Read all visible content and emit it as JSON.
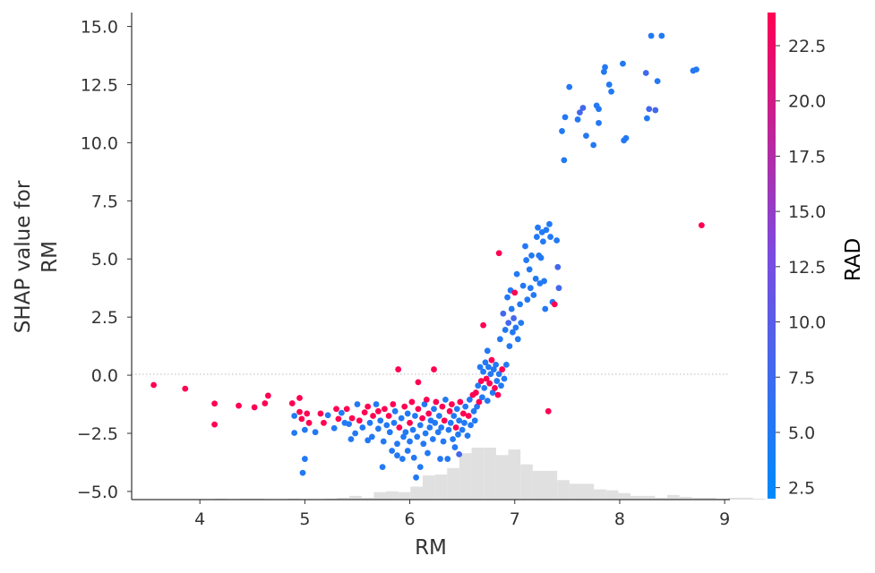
{
  "chart_data": {
    "type": "scatter",
    "title": "",
    "xlabel": "RM",
    "ylabel_lines": [
      "SHAP value for",
      "RM"
    ],
    "xlim": [
      3.35,
      9.05
    ],
    "ylim": [
      -5.35,
      15.6
    ],
    "xticks": [
      4,
      5,
      6,
      7,
      8,
      9
    ],
    "xtick_labels": [
      "4",
      "5",
      "6",
      "7",
      "8",
      "9"
    ],
    "yticks": [
      15.0,
      12.5,
      10.0,
      7.5,
      5.0,
      2.5,
      0.0,
      -2.5,
      -5.0
    ],
    "ytick_labels": [
      "15.0",
      "12.5",
      "10.0",
      "7.5",
      "5.0",
      "2.5",
      "0.0",
      "−2.5",
      "−5.0"
    ],
    "zero_line": true,
    "colorbar": {
      "label": "RAD",
      "range": [
        2,
        24
      ],
      "ticks": [
        22.5,
        20.0,
        17.5,
        15.0,
        12.5,
        10.0,
        7.5,
        5.0,
        2.5
      ],
      "tick_labels": [
        "22.5",
        "20.0",
        "17.5",
        "15.0",
        "12.5",
        "10.0",
        "7.5",
        "5.0",
        "2.5"
      ],
      "colors": [
        "#008afb",
        "#7b4be0",
        "#ff0052"
      ]
    },
    "histogram": {
      "bin_start": 3.56,
      "bin_width": 0.1165,
      "counts": [
        0,
        0,
        0,
        0,
        0,
        1,
        0,
        1,
        1,
        0,
        0,
        1,
        0,
        0,
        1,
        2,
        4,
        2,
        8,
        9,
        8,
        14,
        26,
        27,
        34,
        50,
        56,
        56,
        48,
        54,
        38,
        31,
        31,
        21,
        17,
        17,
        11,
        10,
        7,
        4,
        4,
        2,
        5,
        3,
        2,
        2,
        1,
        2,
        2,
        1
      ]
    },
    "points": [
      [
        3.56,
        -0.42,
        24
      ],
      [
        3.86,
        -0.58,
        24
      ],
      [
        4.14,
        -1.22,
        24
      ],
      [
        4.14,
        -2.12,
        24
      ],
      [
        4.37,
        -1.31,
        24
      ],
      [
        4.52,
        -1.38,
        24
      ],
      [
        4.62,
        -1.21,
        24
      ],
      [
        4.65,
        -0.88,
        24
      ],
      [
        4.88,
        -1.21,
        24
      ],
      [
        4.9,
        -1.75,
        5
      ],
      [
        4.9,
        -2.48,
        5
      ],
      [
        4.95,
        -1.58,
        24
      ],
      [
        4.95,
        -0.98,
        24
      ],
      [
        4.97,
        -1.88,
        24
      ],
      [
        4.98,
        -4.2,
        5
      ],
      [
        5.0,
        -3.6,
        5
      ],
      [
        5.0,
        -2.35,
        5
      ],
      [
        5.02,
        -1.65,
        24
      ],
      [
        5.04,
        -2.05,
        24
      ],
      [
        5.1,
        -2.45,
        5
      ],
      [
        5.15,
        -1.65,
        24
      ],
      [
        5.18,
        -2.05,
        24
      ],
      [
        5.22,
        -1.72,
        5
      ],
      [
        5.28,
        -2.28,
        5
      ],
      [
        5.3,
        -1.45,
        24
      ],
      [
        5.32,
        -1.88,
        24
      ],
      [
        5.35,
        -1.62,
        5
      ],
      [
        5.38,
        -2.05,
        5
      ],
      [
        5.4,
        -1.45,
        24
      ],
      [
        5.42,
        -2.1,
        5
      ],
      [
        5.44,
        -2.75,
        5
      ],
      [
        5.45,
        -1.85,
        24
      ],
      [
        5.48,
        -2.5,
        5
      ],
      [
        5.5,
        -1.25,
        5
      ],
      [
        5.52,
        -1.95,
        24
      ],
      [
        5.55,
        -2.25,
        5
      ],
      [
        5.57,
        -1.6,
        24
      ],
      [
        5.6,
        -2.8,
        5
      ],
      [
        5.6,
        -1.35,
        24
      ],
      [
        5.62,
        -2.05,
        5
      ],
      [
        5.64,
        -2.65,
        5
      ],
      [
        5.65,
        -1.75,
        24
      ],
      [
        5.68,
        -1.25,
        5
      ],
      [
        5.7,
        -1.55,
        24
      ],
      [
        5.7,
        -2.3,
        5
      ],
      [
        5.72,
        -1.95,
        5
      ],
      [
        5.74,
        -3.95,
        5
      ],
      [
        5.75,
        -2.85,
        5
      ],
      [
        5.76,
        -1.45,
        24
      ],
      [
        5.78,
        -2.15,
        5
      ],
      [
        5.8,
        -1.75,
        24
      ],
      [
        5.81,
        -2.45,
        5
      ],
      [
        5.83,
        -3.25,
        5
      ],
      [
        5.84,
        -1.25,
        24
      ],
      [
        5.85,
        -2.05,
        5
      ],
      [
        5.86,
        -1.55,
        5
      ],
      [
        5.88,
        -3.45,
        5
      ],
      [
        5.88,
        -2.95,
        5
      ],
      [
        5.89,
        0.25,
        24
      ],
      [
        5.9,
        -2.25,
        24
      ],
      [
        5.92,
        -1.85,
        5
      ],
      [
        5.93,
        -3.6,
        5
      ],
      [
        5.94,
        -2.65,
        5
      ],
      [
        5.95,
        -1.35,
        24
      ],
      [
        5.96,
        -2.45,
        5
      ],
      [
        5.98,
        -1.65,
        5
      ],
      [
        5.98,
        -3.25,
        5
      ],
      [
        6.0,
        -2.05,
        24
      ],
      [
        6.0,
        -2.85,
        5
      ],
      [
        6.02,
        -1.15,
        24
      ],
      [
        6.03,
        -2.35,
        5
      ],
      [
        6.04,
        -3.55,
        5
      ],
      [
        6.05,
        -1.75,
        5
      ],
      [
        6.06,
        -4.4,
        5
      ],
      [
        6.07,
        -2.65,
        5
      ],
      [
        6.08,
        -0.3,
        24
      ],
      [
        6.08,
        -1.45,
        24
      ],
      [
        6.1,
        -2.15,
        5
      ],
      [
        6.1,
        -3.95,
        5
      ],
      [
        6.12,
        -1.85,
        24
      ],
      [
        6.13,
        -2.95,
        5
      ],
      [
        6.14,
        -1.25,
        5
      ],
      [
        6.15,
        -2.5,
        5
      ],
      [
        6.16,
        -1.05,
        24
      ],
      [
        6.17,
        -3.35,
        5
      ],
      [
        6.18,
        -1.65,
        24
      ],
      [
        6.19,
        -2.25,
        5
      ],
      [
        6.2,
        -1.95,
        5
      ],
      [
        6.22,
        -2.75,
        5
      ],
      [
        6.23,
        0.25,
        24
      ],
      [
        6.23,
        -1.45,
        5
      ],
      [
        6.24,
        -2.05,
        5
      ],
      [
        6.25,
        -1.15,
        24
      ],
      [
        6.27,
        -2.45,
        5
      ],
      [
        6.28,
        -1.75,
        5
      ],
      [
        6.29,
        -3.6,
        5
      ],
      [
        6.3,
        -2.25,
        5
      ],
      [
        6.31,
        -1.35,
        24
      ],
      [
        6.32,
        -2.85,
        5
      ],
      [
        6.33,
        -1.95,
        24
      ],
      [
        6.34,
        -1.05,
        5
      ],
      [
        6.36,
        -3.6,
        5
      ],
      [
        6.37,
        -2.35,
        5
      ],
      [
        6.38,
        -1.55,
        24
      ],
      [
        6.39,
        -2.05,
        5
      ],
      [
        6.4,
        -1.25,
        24
      ],
      [
        6.41,
        -2.75,
        5
      ],
      [
        6.42,
        -1.75,
        5
      ],
      [
        6.43,
        -3.1,
        5
      ],
      [
        6.44,
        -2.25,
        24
      ],
      [
        6.45,
        -1.45,
        5
      ],
      [
        6.46,
        -2.55,
        5
      ],
      [
        6.47,
        -3.4,
        8
      ],
      [
        6.47,
        -1.95,
        5
      ],
      [
        6.48,
        -1.15,
        24
      ],
      [
        6.5,
        -2.35,
        5
      ],
      [
        6.51,
        -1.65,
        24
      ],
      [
        6.52,
        -2.05,
        5
      ],
      [
        6.53,
        -1.35,
        5
      ],
      [
        6.55,
        -2.6,
        5
      ],
      [
        6.56,
        -1.75,
        24
      ],
      [
        6.57,
        -1.05,
        5
      ],
      [
        6.58,
        -2.15,
        5
      ],
      [
        6.6,
        -0.85,
        24
      ],
      [
        6.61,
        -1.55,
        5
      ],
      [
        6.62,
        -1.95,
        5
      ],
      [
        6.63,
        -0.75,
        24
      ],
      [
        6.64,
        -1.35,
        5
      ],
      [
        6.65,
        -0.45,
        5
      ],
      [
        6.66,
        -1.15,
        24
      ],
      [
        6.67,
        0.35,
        5
      ],
      [
        6.68,
        -0.25,
        24
      ],
      [
        6.69,
        -0.95,
        5
      ],
      [
        6.7,
        0.15,
        5
      ],
      [
        6.7,
        2.15,
        24
      ],
      [
        6.71,
        -0.55,
        5
      ],
      [
        6.72,
        0.55,
        5
      ],
      [
        6.73,
        -0.15,
        24
      ],
      [
        6.74,
        1.05,
        5
      ],
      [
        6.74,
        -1.1,
        5
      ],
      [
        6.75,
        0.35,
        5
      ],
      [
        6.76,
        -0.35,
        24
      ],
      [
        6.77,
        0.05,
        5
      ],
      [
        6.78,
        0.65,
        24
      ],
      [
        6.79,
        -0.75,
        5
      ],
      [
        6.8,
        0.25,
        5
      ],
      [
        6.81,
        -0.55,
        24
      ],
      [
        6.82,
        0.45,
        5
      ],
      [
        6.83,
        -0.25,
        5
      ],
      [
        6.84,
        -0.85,
        24
      ],
      [
        6.85,
        0.05,
        5
      ],
      [
        6.85,
        5.25,
        24
      ],
      [
        6.86,
        1.55,
        5
      ],
      [
        6.87,
        -0.45,
        5
      ],
      [
        6.88,
        0.25,
        24
      ],
      [
        6.89,
        2.65,
        8
      ],
      [
        6.9,
        -0.15,
        5
      ],
      [
        6.91,
        1.95,
        5
      ],
      [
        6.92,
        0.45,
        5
      ],
      [
        6.93,
        3.35,
        5
      ],
      [
        6.94,
        2.25,
        8
      ],
      [
        6.95,
        1.25,
        5
      ],
      [
        6.96,
        3.65,
        5
      ],
      [
        6.97,
        2.85,
        5
      ],
      [
        6.98,
        1.85,
        5
      ],
      [
        6.99,
        2.45,
        8
      ],
      [
        7.0,
        3.55,
        24
      ],
      [
        7.01,
        2.05,
        5
      ],
      [
        7.02,
        4.35,
        5
      ],
      [
        7.03,
        1.55,
        5
      ],
      [
        7.05,
        3.05,
        5
      ],
      [
        7.06,
        2.25,
        5
      ],
      [
        7.08,
        3.85,
        5
      ],
      [
        7.1,
        5.55,
        5
      ],
      [
        7.11,
        4.95,
        5
      ],
      [
        7.12,
        3.25,
        5
      ],
      [
        7.14,
        4.55,
        5
      ],
      [
        7.15,
        3.75,
        5
      ],
      [
        7.16,
        5.15,
        5
      ],
      [
        7.18,
        3.45,
        5
      ],
      [
        7.2,
        4.15,
        5
      ],
      [
        7.21,
        5.95,
        5
      ],
      [
        7.22,
        6.35,
        5
      ],
      [
        7.23,
        5.15,
        5
      ],
      [
        7.24,
        3.95,
        5
      ],
      [
        7.25,
        5.05,
        5
      ],
      [
        7.26,
        6.15,
        5
      ],
      [
        7.27,
        5.75,
        5
      ],
      [
        7.28,
        4.05,
        5
      ],
      [
        7.29,
        2.85,
        5
      ],
      [
        7.3,
        6.25,
        5
      ],
      [
        7.32,
        -1.55,
        24
      ],
      [
        7.33,
        6.5,
        5
      ],
      [
        7.34,
        5.95,
        5
      ],
      [
        7.36,
        3.15,
        5
      ],
      [
        7.38,
        3.05,
        24
      ],
      [
        7.4,
        5.8,
        5
      ],
      [
        7.41,
        4.65,
        8
      ],
      [
        7.42,
        3.75,
        8
      ],
      [
        7.45,
        10.5,
        5
      ],
      [
        7.47,
        9.25,
        5
      ],
      [
        7.48,
        11.1,
        5
      ],
      [
        7.52,
        12.4,
        5
      ],
      [
        7.6,
        11.0,
        5
      ],
      [
        7.62,
        11.3,
        8
      ],
      [
        7.65,
        11.5,
        8
      ],
      [
        7.68,
        10.3,
        5
      ],
      [
        7.75,
        9.9,
        5
      ],
      [
        7.78,
        11.6,
        5
      ],
      [
        7.8,
        11.45,
        5
      ],
      [
        7.8,
        10.85,
        5
      ],
      [
        7.85,
        13.05,
        5
      ],
      [
        7.86,
        13.25,
        5
      ],
      [
        7.9,
        12.5,
        5
      ],
      [
        7.92,
        12.2,
        5
      ],
      [
        8.03,
        13.4,
        5
      ],
      [
        8.04,
        10.1,
        5
      ],
      [
        8.06,
        10.2,
        5
      ],
      [
        8.25,
        13.0,
        8
      ],
      [
        8.26,
        11.05,
        5
      ],
      [
        8.28,
        11.45,
        8
      ],
      [
        8.3,
        14.6,
        5
      ],
      [
        8.34,
        11.4,
        8
      ],
      [
        8.36,
        12.65,
        5
      ],
      [
        8.4,
        14.6,
        5
      ],
      [
        8.7,
        13.1,
        5
      ],
      [
        8.73,
        13.15,
        5
      ],
      [
        8.78,
        6.45,
        24
      ]
    ]
  }
}
